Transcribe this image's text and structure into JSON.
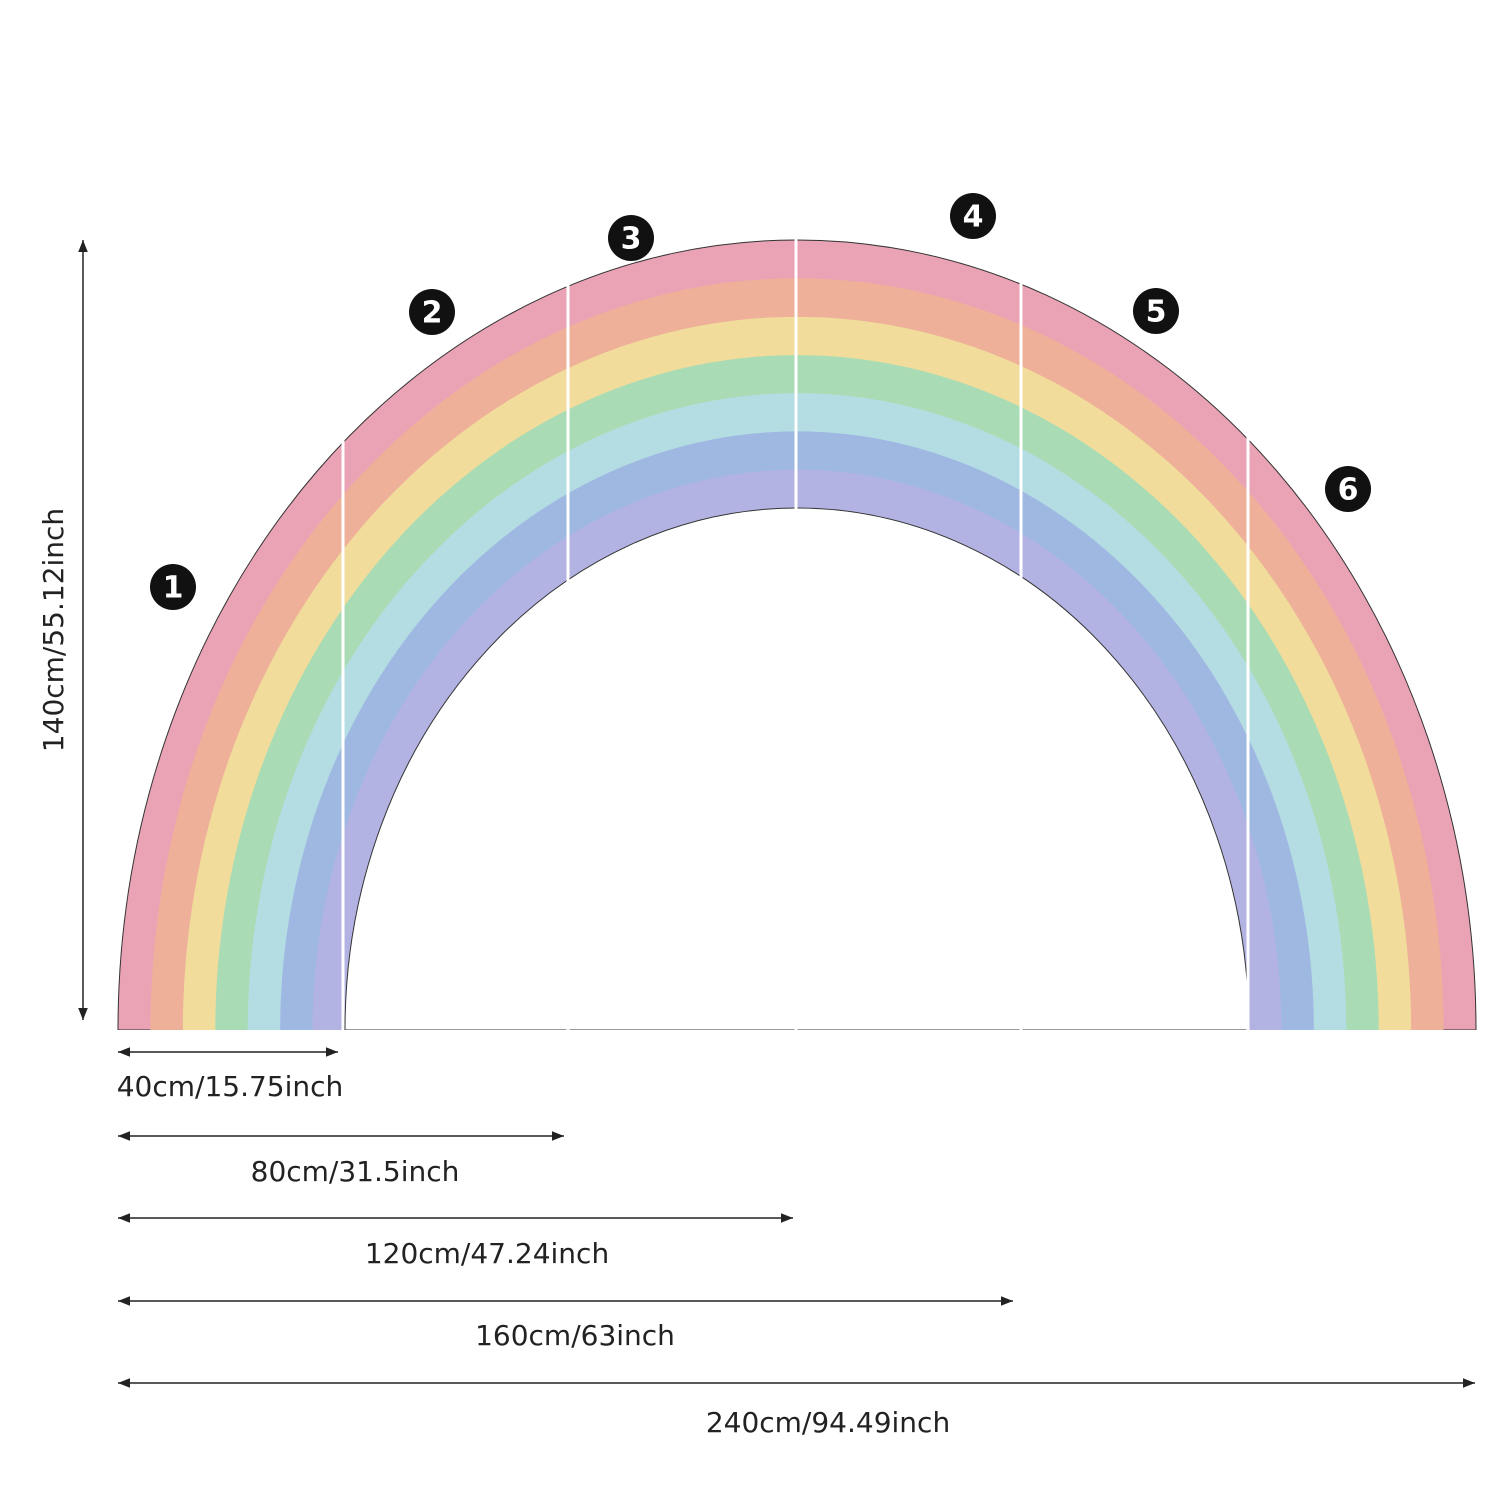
{
  "panel_numbers": [
    "1",
    "2",
    "3",
    "4",
    "5",
    "6"
  ],
  "height_dimension": "140cm/55.12inch",
  "width_dimensions": [
    "40cm/15.75inch",
    "80cm/31.5inch",
    "120cm/47.24inch",
    "160cm/63inch",
    "240cm/94.49inch"
  ]
}
